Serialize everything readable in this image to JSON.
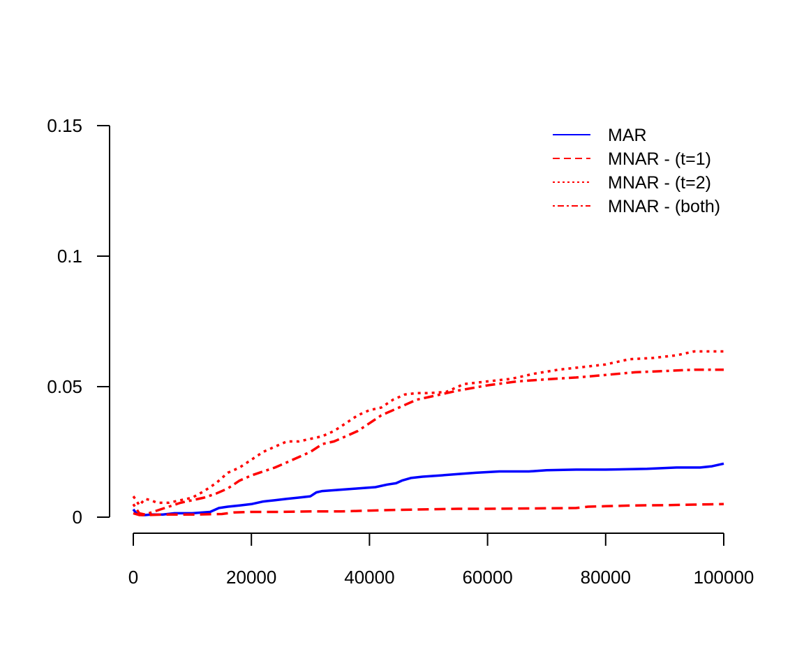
{
  "chart_data": {
    "type": "line",
    "title": "",
    "xlabel": "",
    "ylabel": "",
    "xlim": [
      0,
      100000
    ],
    "ylim": [
      0,
      0.15
    ],
    "grid": false,
    "legend_position": "top-right",
    "x_ticks": [
      {
        "value": 0,
        "label": "0"
      },
      {
        "value": 20000,
        "label": "20000"
      },
      {
        "value": 40000,
        "label": "40000"
      },
      {
        "value": 60000,
        "label": "60000"
      },
      {
        "value": 80000,
        "label": "80000"
      },
      {
        "value": 100000,
        "label": "100000"
      }
    ],
    "y_ticks": [
      {
        "value": 0,
        "label": "0"
      },
      {
        "value": 0.05,
        "label": "0.05"
      },
      {
        "value": 0.1,
        "label": "0.1"
      },
      {
        "value": 0.15,
        "label": "0.15"
      }
    ],
    "series": [
      {
        "name": "MAR",
        "color": "#0000ff",
        "dash": "solid",
        "x": [
          0,
          500,
          1000,
          1500,
          2000,
          3000,
          5000,
          7000,
          10000,
          13000,
          14500,
          16000,
          18000,
          20000,
          22000,
          24000,
          26000,
          28000,
          30000,
          31000,
          32000,
          35000,
          38000,
          41000,
          43000,
          44500,
          45500,
          47000,
          49000,
          52000,
          55000,
          58000,
          62000,
          67000,
          70000,
          75000,
          80000,
          87000,
          92000,
          96000,
          98000,
          100000
        ],
        "y": [
          0.003,
          0.0015,
          0.001,
          0.0008,
          0.0008,
          0.001,
          0.001,
          0.0015,
          0.0015,
          0.002,
          0.0035,
          0.004,
          0.0045,
          0.005,
          0.006,
          0.0065,
          0.007,
          0.0075,
          0.008,
          0.0095,
          0.01,
          0.0105,
          0.011,
          0.0115,
          0.0125,
          0.013,
          0.014,
          0.015,
          0.0155,
          0.016,
          0.0165,
          0.017,
          0.0175,
          0.0175,
          0.018,
          0.0182,
          0.0182,
          0.0185,
          0.019,
          0.019,
          0.0195,
          0.0205
        ]
      },
      {
        "name": "MNAR - (t=1)",
        "color": "#ff0000",
        "dash": "dashed",
        "x": [
          0,
          1000,
          2000,
          5000,
          10000,
          15000,
          17000,
          20000,
          25000,
          30000,
          35000,
          40000,
          45000,
          50000,
          55000,
          60000,
          65000,
          70000,
          75000,
          77000,
          80000,
          85000,
          90000,
          95000,
          100000
        ],
        "y": [
          0.0015,
          0.0008,
          0.0008,
          0.001,
          0.001,
          0.0012,
          0.0018,
          0.002,
          0.002,
          0.0022,
          0.0022,
          0.0025,
          0.0028,
          0.003,
          0.0032,
          0.0032,
          0.0033,
          0.0034,
          0.0035,
          0.004,
          0.0042,
          0.0045,
          0.0046,
          0.0048,
          0.005
        ]
      },
      {
        "name": "MNAR - (t=2)",
        "color": "#ff0000",
        "dash": "dotted",
        "x": [
          0,
          500,
          1000,
          2000,
          3000,
          4000,
          6000,
          8000,
          10000,
          12000,
          14000,
          16000,
          18000,
          20000,
          22000,
          24000,
          26000,
          28000,
          30000,
          32000,
          34000,
          36000,
          38000,
          40000,
          42000,
          44000,
          46000,
          48000,
          50000,
          53000,
          56000,
          60000,
          64000,
          68000,
          72000,
          76000,
          80000,
          84000,
          88000,
          92000,
          95000,
          98000,
          100000
        ],
        "y": [
          0.008,
          0.0065,
          0.0045,
          0.007,
          0.0065,
          0.0055,
          0.0055,
          0.0065,
          0.0075,
          0.01,
          0.013,
          0.017,
          0.019,
          0.022,
          0.025,
          0.027,
          0.029,
          0.029,
          0.03,
          0.031,
          0.033,
          0.036,
          0.039,
          0.041,
          0.042,
          0.045,
          0.047,
          0.0475,
          0.0475,
          0.048,
          0.051,
          0.052,
          0.053,
          0.055,
          0.0565,
          0.0575,
          0.0585,
          0.0605,
          0.061,
          0.062,
          0.0635,
          0.0635,
          0.0635
        ]
      },
      {
        "name": "MNAR - (both)",
        "color": "#ff0000",
        "dash": "dotdash",
        "x": [
          0,
          1000,
          2000,
          4000,
          6000,
          8000,
          10000,
          12000,
          14000,
          16000,
          18000,
          20000,
          22000,
          24000,
          26000,
          28000,
          30000,
          32000,
          34000,
          36000,
          38000,
          40000,
          42000,
          44000,
          46000,
          48000,
          50000,
          55000,
          60000,
          65000,
          70000,
          75000,
          80000,
          85000,
          90000,
          95000,
          100000
        ],
        "y": [
          0.005,
          0.0015,
          0.001,
          0.0025,
          0.004,
          0.0055,
          0.0065,
          0.0075,
          0.009,
          0.011,
          0.014,
          0.016,
          0.0175,
          0.019,
          0.021,
          0.023,
          0.025,
          0.028,
          0.029,
          0.031,
          0.033,
          0.036,
          0.039,
          0.041,
          0.043,
          0.045,
          0.046,
          0.0485,
          0.0505,
          0.052,
          0.0528,
          0.0535,
          0.0545,
          0.0555,
          0.056,
          0.0565,
          0.0565
        ]
      }
    ]
  }
}
